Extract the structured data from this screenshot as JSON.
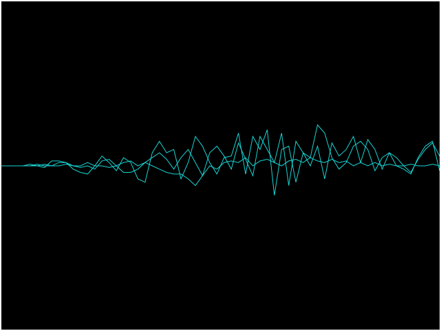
{
  "colors": {
    "background": "#000000",
    "frame": "#ffffff",
    "trace": "#19d6d6"
  },
  "chart_data": {
    "type": "line",
    "series": [
      {
        "values": [
          0.0,
          0.0,
          0.0,
          0.0,
          0.01,
          0.0,
          -0.01,
          0.03,
          0.03,
          0.02,
          -0.02,
          -0.04,
          -0.05,
          0.0,
          0.06,
          0.02,
          -0.03,
          0.05,
          0.02,
          -0.08,
          -0.1,
          0.08,
          0.15,
          0.08,
          0.1,
          -0.08,
          0.02,
          0.18,
          0.12,
          0.02,
          -0.05,
          0.05,
          0.06,
          0.2,
          -0.05,
          0.18,
          0.1,
          0.22,
          -0.18,
          0.1,
          0.12,
          -0.1,
          0.08,
          0.05,
          0.25,
          0.2,
          0.05,
          -0.02,
          0.02,
          0.12,
          0.15,
          0.1,
          -0.03,
          0.05,
          0.08,
          0.0,
          -0.02,
          -0.05,
          0.05,
          0.12,
          0.15,
          -0.03
        ]
      },
      {
        "values": [
          0.0,
          0.0,
          0.0,
          0.0,
          0.0,
          0.01,
          0.0,
          0.0,
          0.02,
          0.02,
          0.0,
          -0.01,
          0.0,
          -0.02,
          0.03,
          0.04,
          0.0,
          -0.04,
          -0.04,
          -0.02,
          0.02,
          0.05,
          0.08,
          0.04,
          -0.02,
          0.05,
          0.1,
          0.02,
          -0.06,
          0.08,
          0.12,
          0.06,
          -0.02,
          0.14,
          0.04,
          -0.06,
          0.18,
          0.1,
          0.02,
          0.2,
          -0.12,
          0.15,
          0.08,
          0.0,
          0.12,
          -0.08,
          0.14,
          0.06,
          0.1,
          0.18,
          0.02,
          0.16,
          0.1,
          -0.02,
          0.08,
          0.05,
          0.0,
          -0.04,
          0.04,
          0.1,
          0.14,
          0.06
        ]
      },
      {
        "values": [
          0.0,
          0.0,
          0.0,
          0.0,
          0.0,
          0.0,
          0.01,
          0.0,
          0.0,
          0.01,
          0.0,
          0.0,
          0.02,
          0.0,
          0.0,
          -0.01,
          0.0,
          0.02,
          0.03,
          0.0,
          0.02,
          0.0,
          -0.02,
          -0.04,
          -0.05,
          -0.05,
          -0.08,
          -0.12,
          -0.06,
          0.0,
          -0.02,
          0.02,
          0.03,
          0.02,
          0.05,
          0.0,
          0.03,
          0.04,
          0.02,
          0.0,
          0.03,
          0.04,
          0.02,
          0.05,
          0.03,
          0.02,
          0.04,
          0.02,
          0.03,
          0.0,
          0.02,
          0.0,
          0.02,
          0.0,
          0.01,
          0.0,
          0.0,
          0.01,
          0.0,
          0.0,
          0.01,
          0.0
        ]
      }
    ],
    "x": [
      0,
      1,
      2,
      3,
      4,
      5,
      6,
      7,
      8,
      9,
      10,
      11,
      12,
      13,
      14,
      15,
      16,
      17,
      18,
      19,
      20,
      21,
      22,
      23,
      24,
      25,
      26,
      27,
      28,
      29,
      30,
      31,
      32,
      33,
      34,
      35,
      36,
      37,
      38,
      39,
      40,
      41,
      42,
      43,
      44,
      45,
      46,
      47,
      48,
      49,
      50,
      51,
      52,
      53,
      54,
      55,
      56,
      57,
      58,
      59,
      60,
      61
    ],
    "ylim": [
      -1,
      1
    ],
    "grid": false
  }
}
